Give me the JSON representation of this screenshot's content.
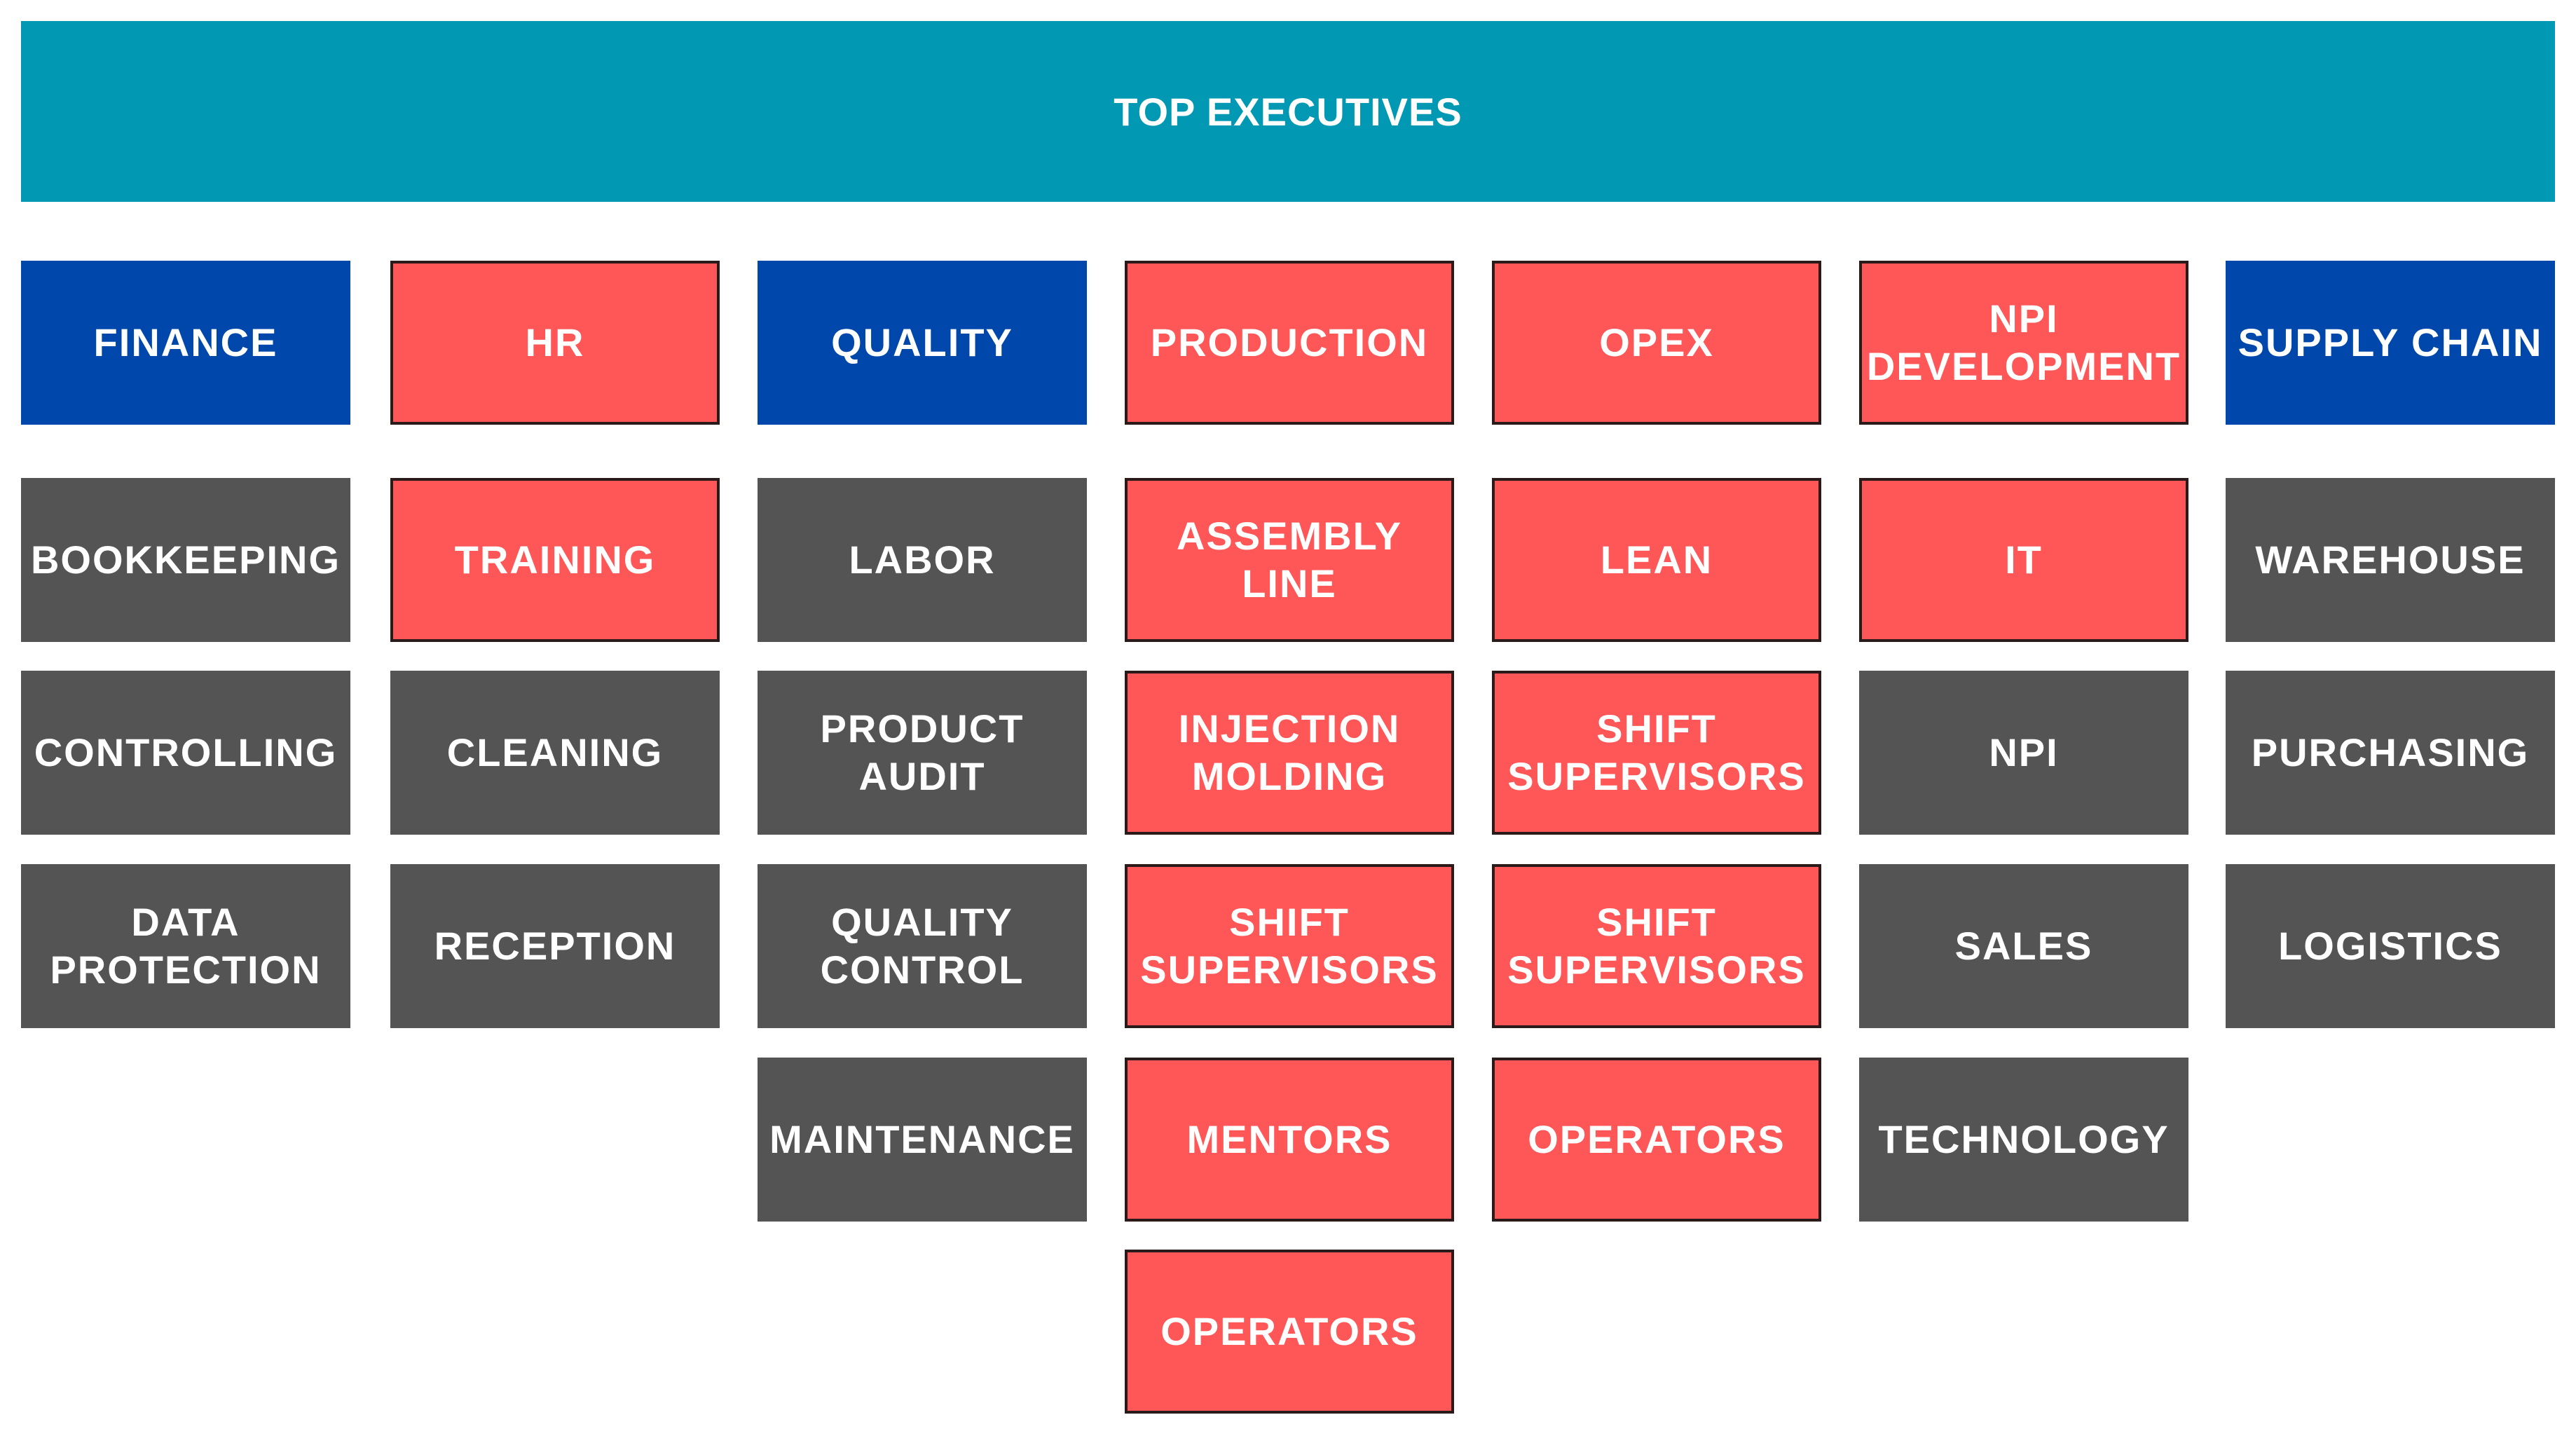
{
  "header": {
    "title": "TOP EXECUTIVES"
  },
  "columns": [
    {
      "dept": "FINANCE",
      "items": [
        "BOOKKEEPING",
        "CONTROLLING",
        "DATA\nPROTECTION"
      ]
    },
    {
      "dept": "HR",
      "items": [
        "TRAINING",
        "CLEANING",
        "RECEPTION"
      ]
    },
    {
      "dept": "QUALITY",
      "items": [
        "LABOR",
        "PRODUCT\nAUDIT",
        "QUALITY\nCONTROL",
        "MAINTENANCE"
      ]
    },
    {
      "dept": "PRODUCTION",
      "items": [
        "ASSEMBLY\nLINE",
        "INJECTION\nMOLDING",
        "SHIFT\nSUPERVISORS",
        "MENTORS",
        "OPERATORS"
      ]
    },
    {
      "dept": "OPEX",
      "items": [
        "LEAN",
        "SHIFT\nSUPERVISORS",
        "SHIFT\nSUPERVISORS",
        "OPERATORS"
      ]
    },
    {
      "dept": "NPI\nDEVELOPMENT",
      "items": [
        "IT",
        "NPI",
        "SALES",
        "TECHNOLOGY"
      ]
    },
    {
      "dept": "SUPPLY CHAIN",
      "items": [
        "WAREHOUSE",
        "PURCHASING",
        "LOGISTICS"
      ]
    }
  ],
  "colors": {
    "top": "#0098b2",
    "blue": "#0047ab",
    "red": "#ff5757",
    "gray": "#545454"
  }
}
